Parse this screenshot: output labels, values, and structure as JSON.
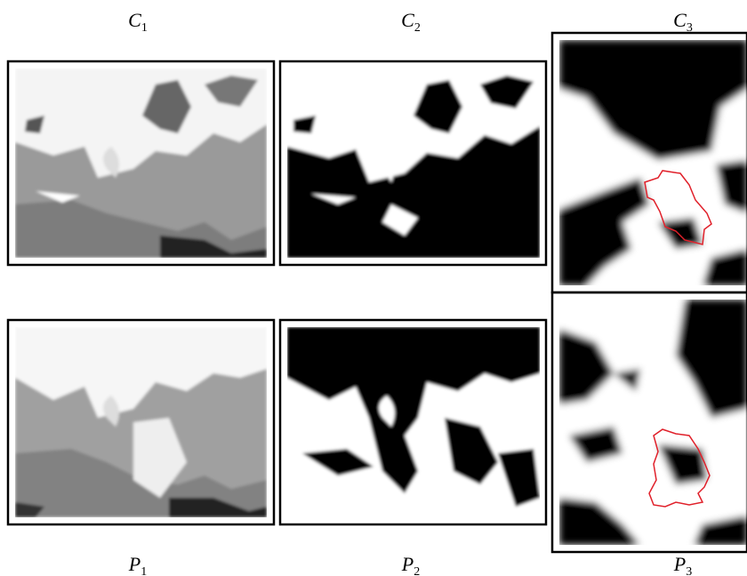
{
  "panels": [
    {
      "letter": "C",
      "index": "1"
    },
    {
      "letter": "C",
      "index": "2"
    },
    {
      "letter": "C",
      "index": "3"
    },
    {
      "letter": "P",
      "index": "1"
    },
    {
      "letter": "P",
      "index": "2"
    },
    {
      "letter": "P",
      "index": "3"
    }
  ]
}
